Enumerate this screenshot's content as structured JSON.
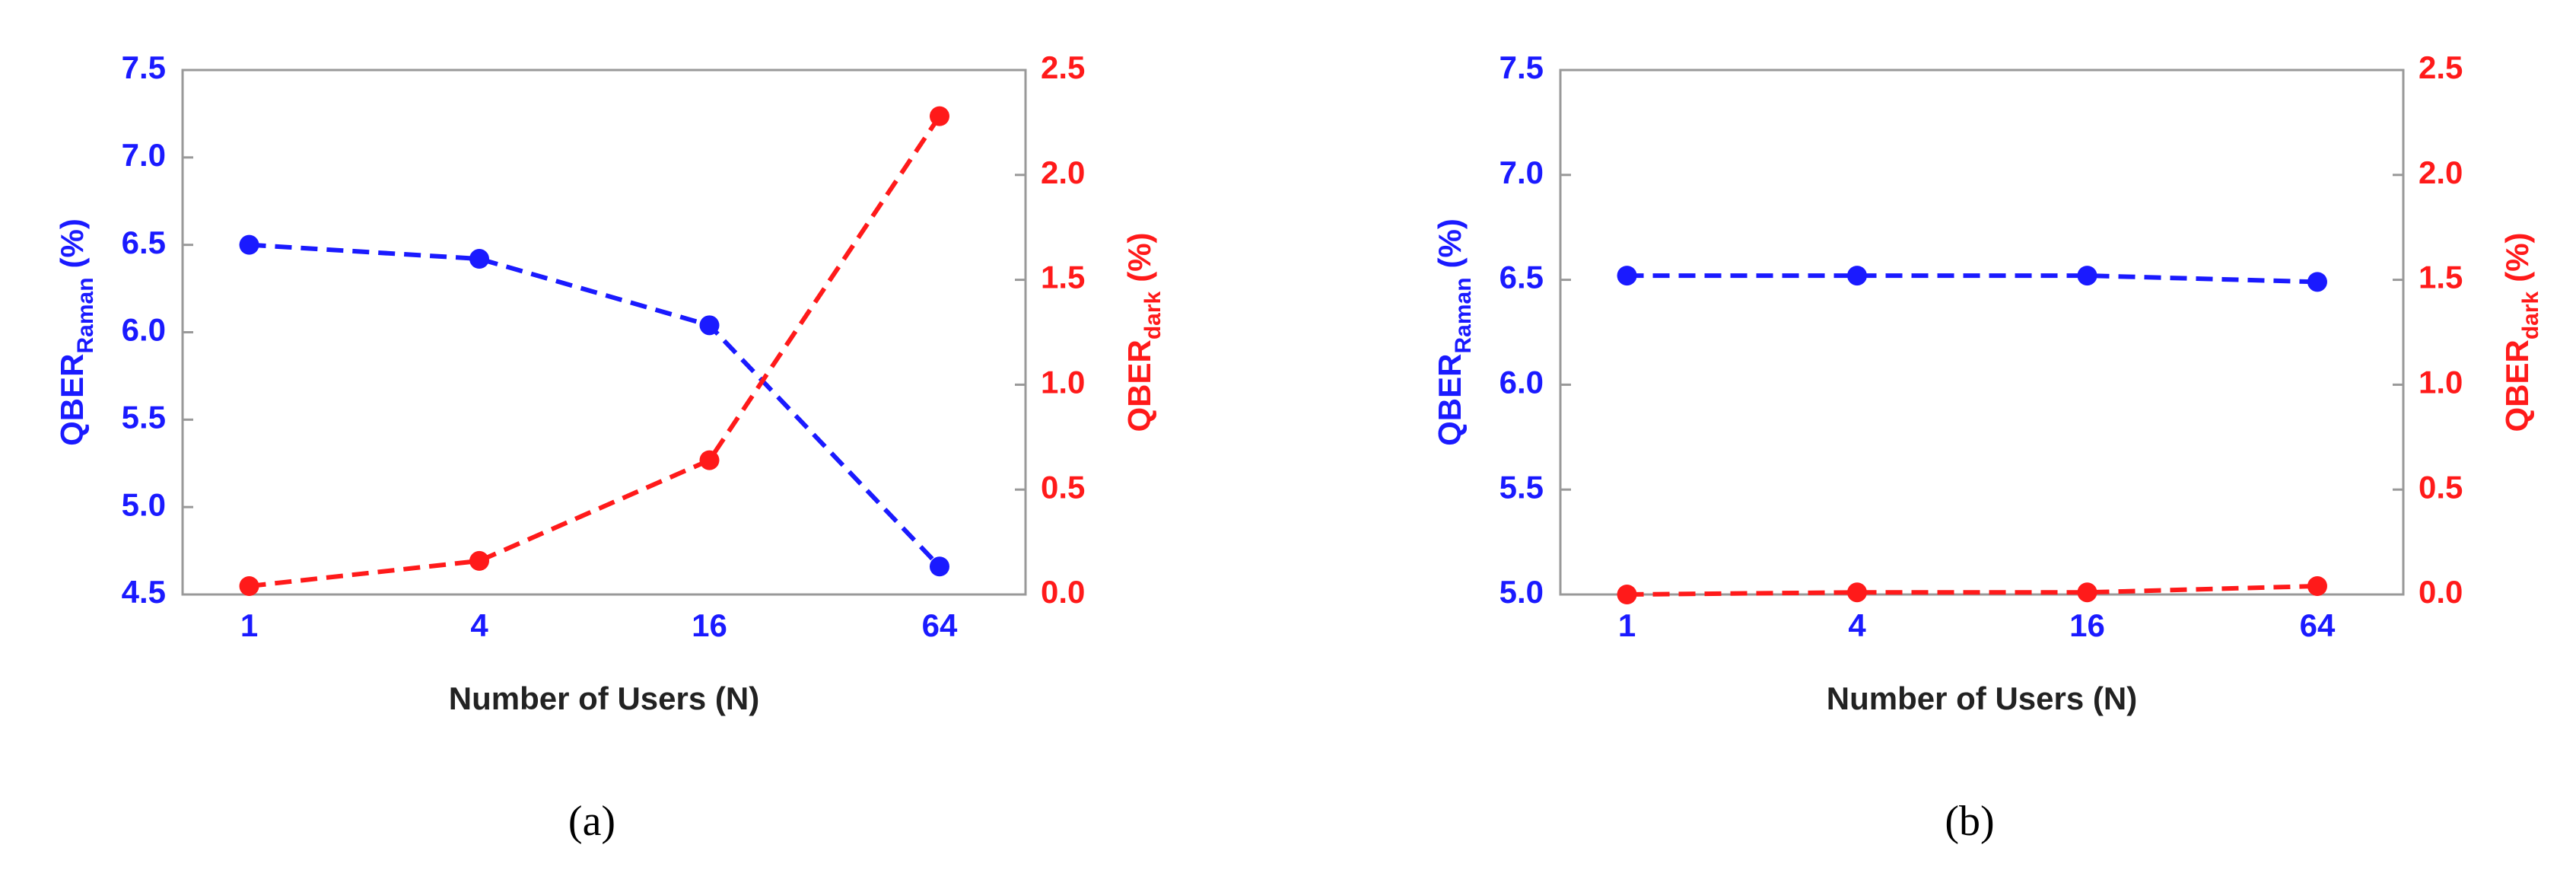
{
  "chart_data": [
    {
      "type": "line",
      "caption": "(a)",
      "xlabel": "Number of Users (N)",
      "categories": [
        "1",
        "4",
        "16",
        "64"
      ],
      "ylabel": [
        "QBER",
        "Raman",
        "(%)"
      ],
      "y2label": [
        "QBER",
        "dark",
        "(%)"
      ],
      "ylim": [
        4.5,
        7.5
      ],
      "yticks": [
        4.5,
        {
          "value": 5,
          "label": "5.0"
        },
        5.5,
        {
          "value": 6,
          "label": "6.0"
        },
        6.5,
        {
          "value": 7,
          "label": "7.0"
        },
        7.5
      ],
      "y2lim": [
        0,
        2.5
      ],
      "y2ticks": [
        {
          "value": 0,
          "label": "0.0"
        },
        0.5,
        {
          "value": 1,
          "label": "1.0"
        },
        1.5,
        {
          "value": 2,
          "label": "2.0"
        },
        2.5
      ],
      "series": [
        {
          "color": "#1a1aff",
          "values": [
            6.5,
            6.42,
            6.04,
            4.66
          ]
        },
        {
          "color": "#ff1a1a",
          "values": [
            0.04,
            0.16,
            0.64,
            2.28
          ],
          "axis": "y2"
        }
      ]
    },
    {
      "type": "line",
      "caption": "(b)",
      "xlabel": "Number of Users (N)",
      "categories": [
        "1",
        "4",
        "16",
        "64"
      ],
      "ylabel": [
        "QBER",
        "Raman",
        "(%)"
      ],
      "y2label": [
        "QBER",
        "dark",
        "(%)"
      ],
      "ylim": [
        5,
        7.5
      ],
      "yticks": [
        {
          "value": 5,
          "label": "5.0"
        },
        5.5,
        {
          "value": 6,
          "label": "6.0"
        },
        6.5,
        {
          "value": 7,
          "label": "7.0"
        },
        7.5
      ],
      "y2lim": [
        0,
        2.5
      ],
      "y2ticks": [
        {
          "value": 0,
          "label": "0.0"
        },
        0.5,
        {
          "value": 1,
          "label": "1.0"
        },
        1.5,
        {
          "value": 2,
          "label": "2.0"
        },
        2.5
      ],
      "series": [
        {
          "color": "#1a1aff",
          "values": [
            6.52,
            6.52,
            6.52,
            6.49
          ]
        },
        {
          "color": "#ff1a1a",
          "values": [
            0.0,
            0.01,
            0.01,
            0.04
          ],
          "axis": "y2"
        }
      ]
    }
  ]
}
